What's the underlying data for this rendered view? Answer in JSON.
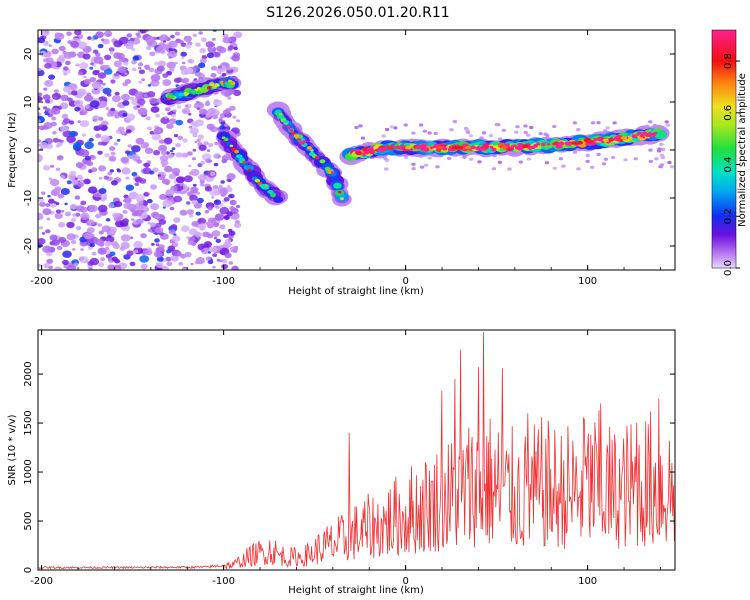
{
  "figure": {
    "title": "S126.2026.050.01.20.R11"
  },
  "chart_data": [
    {
      "type": "heatmap",
      "name": "spectrogram",
      "xlabel": "Height of straight line (km)",
      "ylabel": "Frequency (Hz)",
      "xlim": [
        -202,
        148
      ],
      "ylim": [
        -25,
        25
      ],
      "x_ticks": [
        -200,
        -100,
        0,
        100
      ],
      "y_ticks": [
        -20,
        -10,
        0,
        10,
        20
      ],
      "x_tick_labels": [
        "-200",
        "-100",
        "0",
        "100"
      ],
      "y_tick_labels": [
        "-20",
        "-10",
        "0",
        "10",
        "20"
      ],
      "colorbar": {
        "label": "Normalized spectral amplitude",
        "range": [
          0,
          0.92
        ],
        "ticks": [
          0.0,
          0.2,
          0.4,
          0.6,
          0.8
        ],
        "tick_labels": [
          "0.0",
          "0.2",
          "0.4",
          "0.6",
          "0.8"
        ]
      },
      "ridges": [
        {
          "name": "upper-track",
          "points": [
            [
              -130,
              11
            ],
            [
              -118,
              12
            ],
            [
              -105,
              13.5
            ],
            [
              -95,
              14
            ]
          ],
          "amplitude": 0.45
        },
        {
          "name": "lower-track",
          "points": [
            [
              -100,
              3
            ],
            [
              -90,
              -2
            ],
            [
              -80,
              -7
            ],
            [
              -70,
              -10
            ]
          ],
          "amplitude": 0.4
        },
        {
          "name": "descending-track",
          "points": [
            [
              -70,
              8
            ],
            [
              -60,
              3
            ],
            [
              -50,
              -1
            ],
            [
              -40,
              -5
            ],
            [
              -35,
              -10
            ]
          ],
          "amplitude": 0.45
        },
        {
          "name": "main-track",
          "points": [
            [
              -30,
              -1
            ],
            [
              -10,
              0.5
            ],
            [
              20,
              0.5
            ],
            [
              50,
              0.5
            ],
            [
              80,
              1
            ],
            [
              110,
              2
            ],
            [
              140,
              3.5
            ]
          ],
          "amplitude": 0.85
        }
      ],
      "noise_region": {
        "x_range": [
          -202,
          -92
        ],
        "y_range": [
          -25,
          25
        ],
        "amplitude": 0.15
      }
    },
    {
      "type": "line",
      "name": "snr",
      "xlabel": "Height of straight line (km)",
      "ylabel": "SNR (10 * v/v)",
      "xlim": [
        -202,
        148
      ],
      "ylim": [
        0,
        2450
      ],
      "x_ticks": [
        -200,
        -100,
        0,
        100
      ],
      "y_ticks": [
        0,
        500,
        1000,
        1500,
        2000
      ],
      "x_tick_labels": [
        "-200",
        "-100",
        "0",
        "100"
      ],
      "y_tick_labels": [
        "0",
        "500",
        "1000",
        "1500",
        "2000"
      ],
      "series": [
        {
          "name": "SNR",
          "color": "#ee3333",
          "envelope_x": [
            -202,
            -150,
            -110,
            -95,
            -85,
            -75,
            -65,
            -55,
            -45,
            -35,
            -25,
            -15,
            -5,
            5,
            15,
            25,
            35,
            45,
            55,
            65,
            75,
            85,
            95,
            105,
            115,
            125,
            135,
            148
          ],
          "envelope_y": [
            25,
            25,
            30,
            55,
            150,
            220,
            130,
            150,
            260,
            330,
            420,
            480,
            560,
            650,
            720,
            800,
            900,
            950,
            850,
            820,
            900,
            850,
            900,
            950,
            850,
            900,
            950,
            900
          ],
          "peaks": [
            [
              -31,
              1400
            ],
            [
              20,
              1830
            ],
            [
              27,
              1950
            ],
            [
              30,
              2250
            ],
            [
              40,
              2070
            ],
            [
              43,
              2430
            ],
            [
              53,
              2060
            ],
            [
              67,
              1600
            ],
            [
              98,
              1540
            ],
            [
              107,
              1700
            ],
            [
              127,
              1500
            ],
            [
              139,
              1750
            ]
          ]
        }
      ]
    }
  ]
}
